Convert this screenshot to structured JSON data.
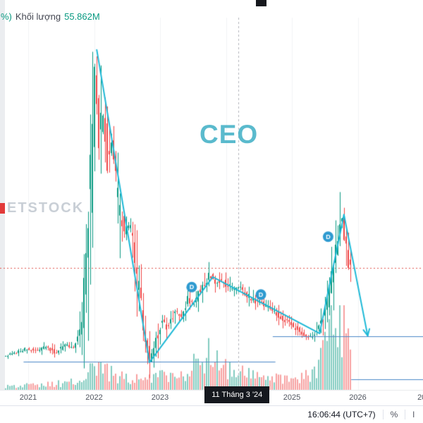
{
  "legend": {
    "change_suffix": "%)",
    "volume_label": "Khối lượng",
    "volume_value": "55.862M"
  },
  "watermarks": {
    "brand": "ETSTOCK",
    "symbol": "CEO"
  },
  "axis": {
    "ticks": [
      {
        "label": "2021",
        "year": 2021
      },
      {
        "label": "2022",
        "year": 2022
      },
      {
        "label": "2023",
        "year": 2023
      },
      {
        "label": "2025",
        "year": 2025
      },
      {
        "label": "2026",
        "year": 2026
      },
      {
        "label": "20",
        "year": 2026.97
      }
    ],
    "highlight": {
      "label": "11 Tháng 3 '24",
      "year": 2024.19
    }
  },
  "footer": {
    "clock": "16:06:44 (UTC+7)",
    "percent_label": "%",
    "log_label": "l"
  },
  "chart_data": {
    "type": "candlestick",
    "symbol": "CEO",
    "title": "CEO price with volume, trend lines and projection arrow",
    "x_domain": [
      2020.66,
      2026.99
    ],
    "y_domain": [
      0,
      100
    ],
    "last_candle_year": 2025.9,
    "cursor_year": 2024.19,
    "alert_price": 32.6,
    "price_anchors": [
      [
        2020.66,
        9
      ],
      [
        2020.85,
        10
      ],
      [
        2021.0,
        11
      ],
      [
        2021.15,
        10.5
      ],
      [
        2021.3,
        11.5
      ],
      [
        2021.45,
        10
      ],
      [
        2021.6,
        12
      ],
      [
        2021.72,
        11
      ],
      [
        2021.82,
        15
      ],
      [
        2021.9,
        30
      ],
      [
        2021.97,
        55
      ],
      [
        2022.02,
        80
      ],
      [
        2022.05,
        88
      ],
      [
        2022.1,
        66
      ],
      [
        2022.17,
        74
      ],
      [
        2022.24,
        60
      ],
      [
        2022.3,
        67
      ],
      [
        2022.4,
        48
      ],
      [
        2022.5,
        42
      ],
      [
        2022.58,
        45
      ],
      [
        2022.68,
        30
      ],
      [
        2022.78,
        16
      ],
      [
        2022.87,
        7.5
      ],
      [
        2022.95,
        12
      ],
      [
        2023.05,
        19
      ],
      [
        2023.15,
        16.5
      ],
      [
        2023.25,
        21
      ],
      [
        2023.35,
        19.5
      ],
      [
        2023.45,
        24
      ],
      [
        2023.55,
        23
      ],
      [
        2023.65,
        27.5
      ],
      [
        2023.72,
        29
      ],
      [
        2023.78,
        31
      ],
      [
        2023.85,
        28.5
      ],
      [
        2023.95,
        29.5
      ],
      [
        2024.05,
        28
      ],
      [
        2024.15,
        27
      ],
      [
        2024.25,
        27.5
      ],
      [
        2024.35,
        25.5
      ],
      [
        2024.45,
        24
      ],
      [
        2024.6,
        23
      ],
      [
        2024.75,
        21
      ],
      [
        2024.9,
        19
      ],
      [
        2025.05,
        17
      ],
      [
        2025.2,
        15
      ],
      [
        2025.3,
        14
      ],
      [
        2025.4,
        15.5
      ],
      [
        2025.5,
        19
      ],
      [
        2025.58,
        25
      ],
      [
        2025.65,
        32
      ],
      [
        2025.72,
        40
      ],
      [
        2025.79,
        46
      ],
      [
        2025.84,
        38
      ],
      [
        2025.9,
        33
      ]
    ],
    "volume_anchors": [
      [
        2020.66,
        0.05
      ],
      [
        2021.2,
        0.07
      ],
      [
        2021.6,
        0.1
      ],
      [
        2021.85,
        0.22
      ],
      [
        2022.0,
        0.32
      ],
      [
        2022.15,
        0.28
      ],
      [
        2022.4,
        0.2
      ],
      [
        2022.7,
        0.15
      ],
      [
        2022.9,
        0.22
      ],
      [
        2023.1,
        0.22
      ],
      [
        2023.4,
        0.25
      ],
      [
        2023.65,
        0.45
      ],
      [
        2023.78,
        0.55
      ],
      [
        2023.9,
        0.35
      ],
      [
        2024.1,
        0.3
      ],
      [
        2024.4,
        0.22
      ],
      [
        2024.7,
        0.16
      ],
      [
        2024.95,
        0.14
      ],
      [
        2025.15,
        0.18
      ],
      [
        2025.35,
        0.3
      ],
      [
        2025.5,
        0.6
      ],
      [
        2025.62,
        0.95
      ],
      [
        2025.72,
        0.8
      ],
      [
        2025.8,
        1.0
      ],
      [
        2025.9,
        0.55
      ]
    ],
    "trend_lines": [
      {
        "from": [
          2022.04,
          91.0
        ],
        "to": [
          2022.84,
          7.4
        ]
      },
      {
        "from": [
          2022.84,
          7.4
        ],
        "to": [
          2023.8,
          30.2
        ]
      },
      {
        "from": [
          2023.8,
          30.2
        ],
        "to": [
          2025.42,
          15.1
        ]
      },
      {
        "from": [
          2025.42,
          15.1
        ],
        "to": [
          2025.79,
          46.9
        ]
      },
      {
        "from": [
          2025.79,
          46.9
        ],
        "to": [
          2026.15,
          14.5
        ],
        "arrow": true
      }
    ],
    "h_lines": [
      {
        "price": 7.5,
        "from": 2020.93,
        "to": 2024.75
      },
      {
        "price": 14.3,
        "from": 2024.71,
        "to": 2026.99
      },
      {
        "price": 2.8,
        "from": 2025.9,
        "to": 2026.99
      }
    ],
    "markers": [
      {
        "label": "D",
        "year": 2023.48,
        "price": 27.5
      },
      {
        "label": "D",
        "year": 2024.53,
        "price": 25.5
      },
      {
        "label": "D",
        "year": 2025.55,
        "price": 41.0
      }
    ],
    "colors": {
      "up": "#089981",
      "down": "#ef4444",
      "up_vol": "rgba(8,153,129,0.5)",
      "down_vol": "rgba(239,68,68,0.5)",
      "trend": "#1db8d6",
      "marker": "#2e9ad0",
      "alert_line": "#e0564f",
      "h_line": "#4a87c7",
      "cursor": "#b0b3ba",
      "grid": "#f1f3f4"
    }
  }
}
